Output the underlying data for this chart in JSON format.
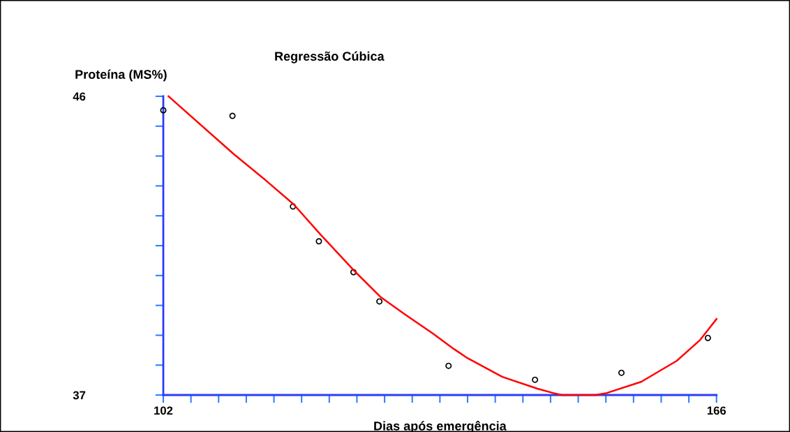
{
  "chart_data": {
    "type": "scatter",
    "title": "Regressão Cúbica",
    "ylabel": "Proteína (MS%)",
    "xlabel": "Dias após emergência",
    "xlim": [
      102,
      166
    ],
    "ylim": [
      37,
      46
    ],
    "xticks": [
      {
        "value": 102,
        "label": "102"
      },
      {
        "value": 105.2,
        "label": null
      },
      {
        "value": 108.4,
        "label": null
      },
      {
        "value": 111.6,
        "label": null
      },
      {
        "value": 114.8,
        "label": null
      },
      {
        "value": 118,
        "label": null
      },
      {
        "value": 121.2,
        "label": null
      },
      {
        "value": 124.4,
        "label": null
      },
      {
        "value": 127.6,
        "label": null
      },
      {
        "value": 130.8,
        "label": null
      },
      {
        "value": 134,
        "label": null
      },
      {
        "value": 137.2,
        "label": null
      },
      {
        "value": 140.4,
        "label": null
      },
      {
        "value": 143.6,
        "label": null
      },
      {
        "value": 146.8,
        "label": null
      },
      {
        "value": 150,
        "label": null
      },
      {
        "value": 153.2,
        "label": null
      },
      {
        "value": 156.4,
        "label": null
      },
      {
        "value": 159.6,
        "label": null
      },
      {
        "value": 162.8,
        "label": null
      },
      {
        "value": 166,
        "label": "166"
      }
    ],
    "yticks": [
      {
        "value": 37,
        "label": "37"
      },
      {
        "value": 37.9,
        "label": null
      },
      {
        "value": 38.8,
        "label": null
      },
      {
        "value": 39.7,
        "label": null
      },
      {
        "value": 40.6,
        "label": null
      },
      {
        "value": 41.5,
        "label": null
      },
      {
        "value": 42.4,
        "label": null
      },
      {
        "value": 43.3,
        "label": null
      },
      {
        "value": 44.2,
        "label": null
      },
      {
        "value": 45.1,
        "label": null
      },
      {
        "value": 46,
        "label": "46"
      }
    ],
    "grid": false,
    "legend": false,
    "marker": "circle",
    "series": [
      {
        "color": "#000000",
        "x": [
          102,
          110,
          117,
          120,
          124,
          127,
          135,
          145,
          155,
          165
        ],
        "values": [
          45.58,
          45.41,
          42.68,
          41.63,
          40.7,
          39.82,
          37.88,
          37.46,
          37.67,
          38.72
        ]
      },
      {
        "type": "line",
        "color": "#ff0000",
        "marker": "none",
        "line_style": "solid",
        "x": [
          102.6,
          110.1,
          113.8,
          117.1,
          120.1,
          124.1,
          127.1,
          129.9,
          133.2,
          135.6,
          137.2,
          141.2,
          145.3,
          147.1,
          148.1,
          152,
          153.3,
          157.3,
          161.4,
          164.1,
          166
        ],
        "values": [
          46,
          44.27,
          43.48,
          42.74,
          41.86,
          40.74,
          39.96,
          39.44,
          38.85,
          38.39,
          38.11,
          37.55,
          37.19,
          37.06,
          37,
          37,
          37.06,
          37.4,
          38.03,
          38.66,
          39.29
        ]
      }
    ]
  }
}
